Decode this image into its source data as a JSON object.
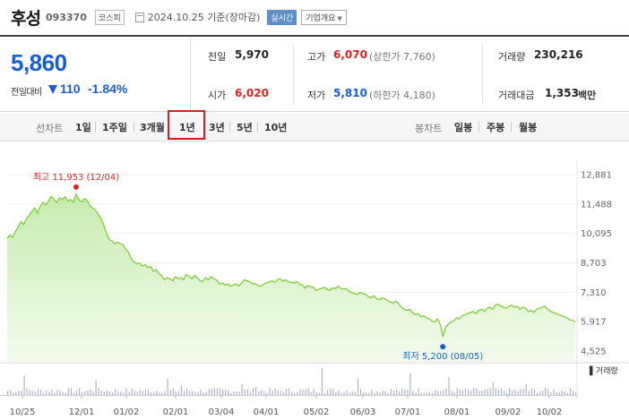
{
  "header": {
    "company": "후성",
    "code": "093370",
    "market": "코스피",
    "date": "2024.10.25 기준(장마감)",
    "realtime": "실시간",
    "company_info": "기업개요"
  },
  "price": {
    "current": "5,860",
    "prev_label": "전일대비",
    "change": "110",
    "change_rate": "-1.84%",
    "direction": "down"
  },
  "stats": {
    "prev_close_label": "전일",
    "prev_close": "5,970",
    "open_label": "시가",
    "open": "6,020",
    "high_label": "고가",
    "high": "6,070",
    "upper_limit": "(상한가 7,760)",
    "low_label": "저가",
    "low": "5,810",
    "lower_limit": "(하한가 4,180)",
    "volume_label": "거래량",
    "volume": "230,216",
    "amount_label": "거래대금",
    "amount": "1,353",
    "amount_unit": "백만"
  },
  "tabs": {
    "line_chart_label": "선차트",
    "periods": [
      "1일",
      "1주일",
      "3개월",
      "1년",
      "3년",
      "5년",
      "10년"
    ],
    "active": "1년",
    "candle_label": "봉차트",
    "candles": [
      "일봉",
      "주봉",
      "월봉"
    ]
  },
  "chart_data": {
    "type": "area",
    "title": "",
    "y_ticks": [
      "12,881",
      "11,488",
      "10,095",
      "8,703",
      "7,310",
      "5,917",
      "4,525"
    ],
    "ylim": [
      4525,
      12881
    ],
    "x_ticks": [
      "10/25",
      "12/01",
      "01/02",
      "02/01",
      "03/04",
      "04/01",
      "05/02",
      "06/03",
      "07/01",
      "08/01",
      "09/02",
      "10/02"
    ],
    "high_annotation": "최고 11,953 (12/04)",
    "low_annotation": "최저 5,200 (08/05)",
    "volume_label": "거래량",
    "colors": {
      "line": "#7ccf3a",
      "fill_top": "#c8ecb0",
      "fill_bottom": "#f3fbee",
      "high": "#e0201f",
      "low": "#1a5dd0",
      "volume": "#aab3c8"
    },
    "series": [
      {
        "values": [
          9850,
          10020,
          9900,
          10180,
          10400,
          10650,
          10520,
          10800,
          10950,
          11150,
          11300,
          11050,
          11380,
          11560,
          11450,
          11620,
          11850,
          11700,
          11560,
          11780,
          11700,
          11830,
          11620,
          11700,
          11580,
          11953,
          11700,
          11580,
          11740,
          11650,
          11420,
          11300,
          11200,
          11000,
          10800,
          10500,
          10100,
          9800,
          9750,
          9600,
          9680,
          9620,
          9550,
          9350,
          9200,
          8900,
          8750,
          8650,
          8700,
          8550,
          8620,
          8480,
          8530,
          8300,
          8380,
          8200,
          8100,
          7900,
          8000,
          7950,
          7850,
          8050,
          7950,
          8000,
          7900,
          8150,
          8050,
          7950,
          8100,
          8000,
          7820,
          7850,
          8000,
          7900,
          8050,
          7950,
          7880,
          7700,
          7750,
          7650,
          7700,
          7600,
          7650,
          7700,
          7600,
          7750,
          7900,
          7850,
          7800,
          7700,
          7720,
          7620,
          7600,
          7680,
          7750,
          7800,
          7850,
          7780,
          7900,
          7950,
          7850,
          7900,
          7800,
          7780,
          7750,
          7820,
          7700,
          7650,
          7500,
          7620,
          7580,
          7550,
          7400,
          7450,
          7500,
          7550,
          7450,
          7400,
          7520,
          7480,
          7600,
          7500,
          7450,
          7480,
          7350,
          7300,
          7250,
          7200,
          7300,
          7250,
          7200,
          7100,
          7050,
          7150,
          7000,
          6950,
          7050,
          7000,
          6900,
          6850,
          6800,
          6900,
          6750,
          6600,
          6500,
          6450,
          6500,
          6350,
          6250,
          6300,
          6150,
          6200,
          6100,
          6050,
          5950,
          5900,
          6050,
          5800,
          5200,
          5650,
          5800,
          5900,
          5950,
          6100,
          6050,
          6200,
          6250,
          6300,
          6350,
          6400,
          6300,
          6450,
          6500,
          6400,
          6550,
          6600,
          6500,
          6700,
          6750,
          6650,
          6600,
          6550,
          6650,
          6700,
          6600,
          6650,
          6500,
          6600,
          6550,
          6400,
          6450,
          6350,
          6500,
          6550,
          6600,
          6650,
          6500,
          6400,
          6350,
          6300,
          6250,
          6200,
          6150,
          6100,
          6000,
          5980,
          5900
        ]
      }
    ]
  }
}
